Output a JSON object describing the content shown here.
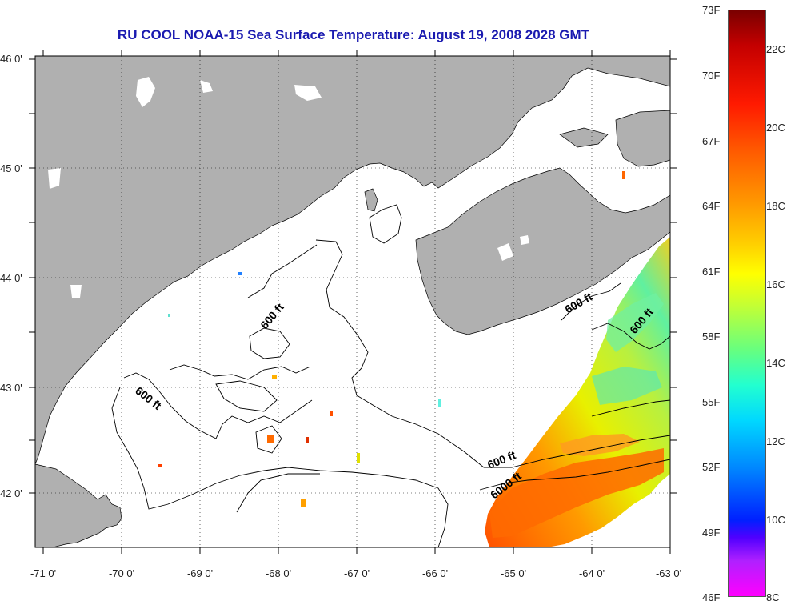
{
  "title": "RU COOL  NOAA-15  Sea Surface Temperature:  August 19, 2008 2028 GMT",
  "map": {
    "lon_labels": [
      "-71 0'",
      "-70 0'",
      "-69 0'",
      "-68 0'",
      "-67 0'",
      "-66 0'",
      "-65 0'",
      "-64 0'",
      "-63 0'"
    ],
    "lat_labels": [
      "46 0'",
      "45 0'",
      "44 0'",
      "43 0'",
      "42 0'"
    ],
    "contour_labels": [
      "600 ft",
      "600 ft",
      "600 ft",
      "600 ft",
      "600 ft",
      "6000 ft"
    ],
    "land_color": "#b0b0b0",
    "grid": "dotted"
  },
  "colorbar": {
    "fahrenheit_labels": [
      "73F",
      "70F",
      "67F",
      "64F",
      "61F",
      "58F",
      "55F",
      "52F",
      "49F",
      "46F"
    ],
    "celsius_labels": [
      "22C",
      "20C",
      "18C",
      "16C",
      "14C",
      "12C",
      "10C",
      "8C"
    ]
  }
}
